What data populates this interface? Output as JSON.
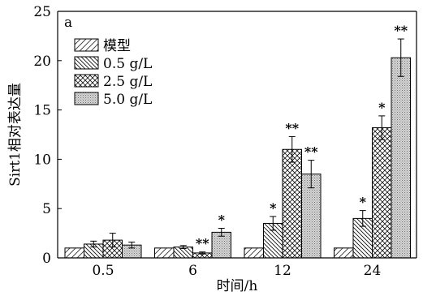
{
  "chart_data": {
    "type": "bar",
    "panel_label": "a",
    "xlabel": "时间/h",
    "ylabel": "Sirt1相对表达量",
    "categories": [
      "0.5",
      "6",
      "12",
      "24"
    ],
    "ylim": [
      0,
      25
    ],
    "yticks": [
      "0",
      "5",
      "10",
      "15",
      "20",
      "25"
    ],
    "grid": false,
    "legend_position": "top-left",
    "series": [
      {
        "name": "模型",
        "pattern": "diag-wide",
        "values": [
          1.0,
          1.0,
          1.0,
          1.0
        ],
        "errors": [
          0,
          0,
          0,
          0
        ],
        "marks": [
          "",
          "",
          "",
          ""
        ]
      },
      {
        "name": "0.5 g/L",
        "pattern": "diag-dense",
        "values": [
          1.4,
          1.1,
          3.5,
          4.0
        ],
        "errors": [
          0.3,
          0.15,
          0.7,
          0.8
        ],
        "marks": [
          "",
          "",
          "*",
          "*"
        ]
      },
      {
        "name": "2.5 g/L",
        "pattern": "crosshatch",
        "values": [
          1.8,
          0.5,
          11.0,
          13.2
        ],
        "errors": [
          0.7,
          0.1,
          1.3,
          1.2
        ],
        "marks": [
          "",
          "**",
          "**",
          "*"
        ]
      },
      {
        "name": "5.0 g/L",
        "pattern": "dots",
        "values": [
          1.3,
          2.6,
          8.5,
          20.3
        ],
        "errors": [
          0.3,
          0.4,
          1.4,
          1.9
        ],
        "marks": [
          "",
          "*",
          "**",
          "**"
        ]
      }
    ]
  }
}
